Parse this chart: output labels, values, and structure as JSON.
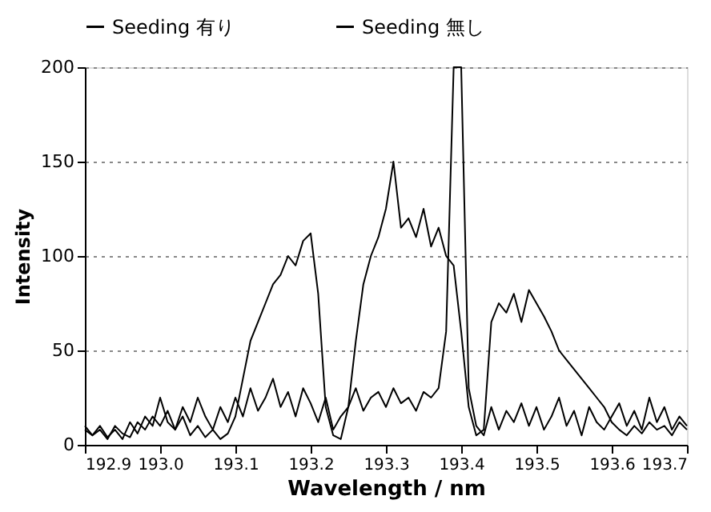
{
  "chart_data": {
    "type": "line",
    "xlabel": "Wavelength / nm",
    "ylabel": "Intensity",
    "x": [
      192.9,
      192.91,
      192.92,
      192.93,
      192.94,
      192.95,
      192.96,
      192.97,
      192.98,
      192.99,
      193.0,
      193.01,
      193.02,
      193.03,
      193.04,
      193.05,
      193.06,
      193.07,
      193.08,
      193.09,
      193.1,
      193.11,
      193.12,
      193.13,
      193.14,
      193.15,
      193.16,
      193.17,
      193.18,
      193.19,
      193.2,
      193.21,
      193.22,
      193.23,
      193.24,
      193.25,
      193.26,
      193.27,
      193.28,
      193.29,
      193.3,
      193.31,
      193.32,
      193.33,
      193.34,
      193.35,
      193.36,
      193.37,
      193.38,
      193.39,
      193.4,
      193.41,
      193.42,
      193.43,
      193.44,
      193.45,
      193.46,
      193.47,
      193.48,
      193.49,
      193.5,
      193.51,
      193.52,
      193.53,
      193.54,
      193.55,
      193.56,
      193.57,
      193.58,
      193.59,
      193.6,
      193.61,
      193.62,
      193.63,
      193.64,
      193.65,
      193.66,
      193.67,
      193.68,
      193.69,
      193.7
    ],
    "series": [
      {
        "name": "Seeding 有り",
        "color": "#000000",
        "values": [
          10,
          5,
          8,
          3,
          10,
          6,
          4,
          12,
          8,
          15,
          10,
          18,
          8,
          20,
          12,
          25,
          15,
          8,
          20,
          12,
          25,
          15,
          30,
          18,
          25,
          35,
          20,
          28,
          15,
          30,
          22,
          12,
          25,
          8,
          15,
          20,
          30,
          18,
          25,
          28,
          20,
          30,
          22,
          25,
          18,
          28,
          25,
          30,
          60,
          200,
          200,
          30,
          10,
          5,
          20,
          8,
          18,
          12,
          22,
          10,
          20,
          8,
          15,
          25,
          10,
          18,
          5,
          20,
          12,
          8,
          15,
          22,
          10,
          18,
          8,
          25,
          12,
          20,
          8,
          15,
          10
        ]
      },
      {
        "name": "Seeding 無し",
        "color": "#000000",
        "values": [
          8,
          5,
          10,
          4,
          8,
          3,
          12,
          6,
          15,
          10,
          25,
          12,
          8,
          15,
          5,
          10,
          4,
          8,
          3,
          6,
          15,
          35,
          55,
          65,
          75,
          85,
          90,
          100,
          95,
          108,
          112,
          80,
          20,
          5,
          3,
          20,
          55,
          85,
          100,
          110,
          125,
          150,
          115,
          120,
          110,
          125,
          105,
          115,
          100,
          95,
          60,
          20,
          5,
          8,
          65,
          75,
          70,
          80,
          65,
          82,
          75,
          68,
          60,
          50,
          45,
          40,
          35,
          30,
          25,
          20,
          12,
          8,
          5,
          10,
          6,
          12,
          8,
          10,
          5,
          12,
          8
        ]
      }
    ],
    "xlim": [
      192.9,
      193.7
    ],
    "xticks": [
      192.9,
      {
        "value": 193.0,
        "label": "193.0"
      },
      193.1,
      193.2,
      193.3,
      193.4,
      193.5,
      193.6,
      193.7
    ],
    "ylim": [
      0,
      200
    ],
    "yticks": [
      0,
      50,
      100,
      150,
      200
    ],
    "grid": "y",
    "legend": "top",
    "line_style": "solid"
  }
}
